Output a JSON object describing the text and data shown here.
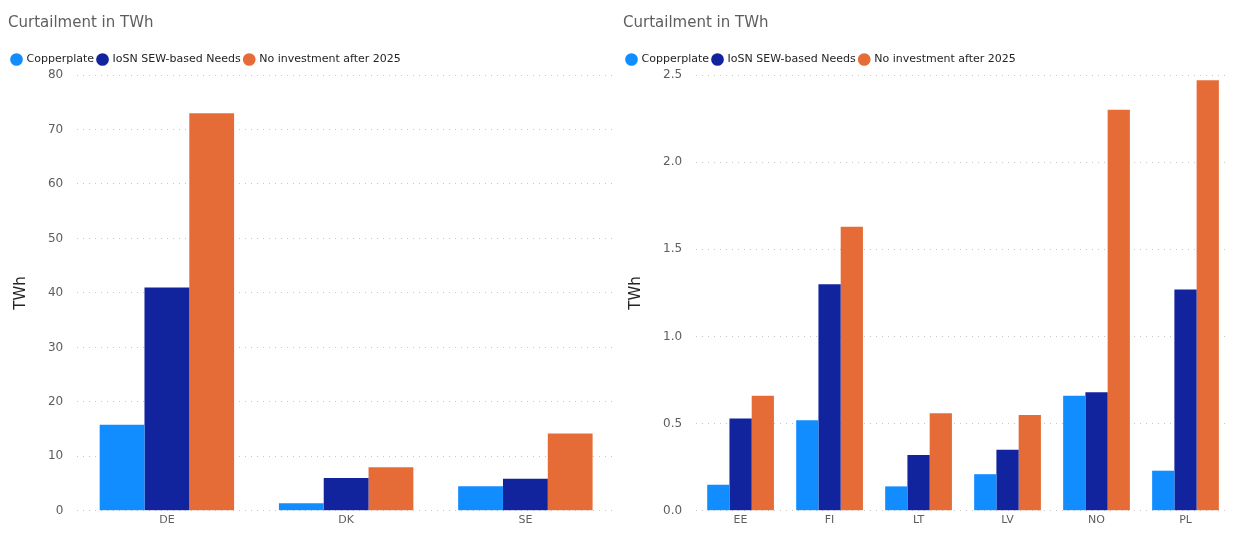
{
  "chart_data": [
    {
      "type": "bar",
      "title": "Curtailment in TWh",
      "ylabel": "TWh",
      "categories": [
        "DE",
        "DK",
        "SE"
      ],
      "series": [
        {
          "name": "Copperplate",
          "color": "#118dff",
          "values": [
            15.8,
            1.4,
            4.5
          ]
        },
        {
          "name": "IoSN SEW-based Needs",
          "color": "#12239e",
          "values": [
            41,
            6.0,
            5.9
          ]
        },
        {
          "name": "No investment after 2025",
          "color": "#e66c37",
          "values": [
            73,
            8.0,
            14.2
          ]
        }
      ],
      "ylim": [
        0,
        80
      ],
      "yticks": [
        0,
        10,
        20,
        30,
        40,
        50,
        60,
        70,
        80
      ],
      "grid": "y",
      "legend": "top left"
    },
    {
      "type": "bar",
      "title": "Curtailment in TWh",
      "ylabel": "TWh",
      "categories": [
        "EE",
        "FI",
        "LT",
        "LV",
        "NO",
        "PL"
      ],
      "series": [
        {
          "name": "Copperplate",
          "color": "#118dff",
          "values": [
            0.15,
            0.52,
            0.14,
            0.21,
            0.66,
            0.23
          ]
        },
        {
          "name": "IoSN SEW-based Needs",
          "color": "#12239e",
          "values": [
            0.53,
            1.3,
            0.32,
            0.35,
            0.68,
            1.27
          ]
        },
        {
          "name": "No investment after 2025",
          "color": "#e66c37",
          "values": [
            0.66,
            1.63,
            0.56,
            0.55,
            2.3,
            2.47
          ]
        }
      ],
      "ylim": [
        0,
        2.5
      ],
      "yticks": [
        {
          "value": 0,
          "label": "0.0"
        },
        0.5,
        {
          "value": 1,
          "label": "1.0"
        },
        1.5,
        {
          "value": 2,
          "label": "2.0"
        },
        2.5
      ],
      "grid": "y",
      "legend": "top left"
    }
  ]
}
